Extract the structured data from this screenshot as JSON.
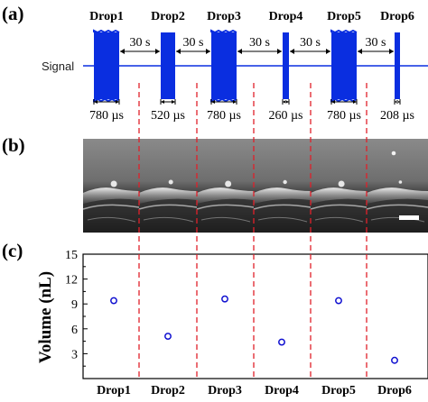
{
  "panels": {
    "a": "(a)",
    "b": "(b)",
    "c": "(c)"
  },
  "signal_label": "Signal",
  "interval_label": "30 s",
  "pulses": [
    {
      "name": "Drop1",
      "duration": "780 µs"
    },
    {
      "name": "Drop2",
      "duration": "520 µs"
    },
    {
      "name": "Drop3",
      "duration": "780 µs"
    },
    {
      "name": "Drop4",
      "duration": "260 µs"
    },
    {
      "name": "Drop5",
      "duration": "780 µs"
    },
    {
      "name": "Drop6",
      "duration": "208 µs"
    }
  ],
  "colors": {
    "signal": "#0a2ee0",
    "marker": "#1010d0",
    "divider": "#e0202a"
  },
  "chart_data": {
    "type": "scatter",
    "categories": [
      "Drop1",
      "Drop2",
      "Drop3",
      "Drop4",
      "Drop5",
      "Drop6"
    ],
    "values": [
      9.4,
      5.1,
      9.6,
      4.4,
      9.4,
      2.2
    ],
    "ylabel": "Volume (nL)",
    "ylim": [
      0,
      15
    ],
    "yticks": [
      "3",
      "6",
      "9",
      "12",
      "15"
    ],
    "grid": false
  }
}
